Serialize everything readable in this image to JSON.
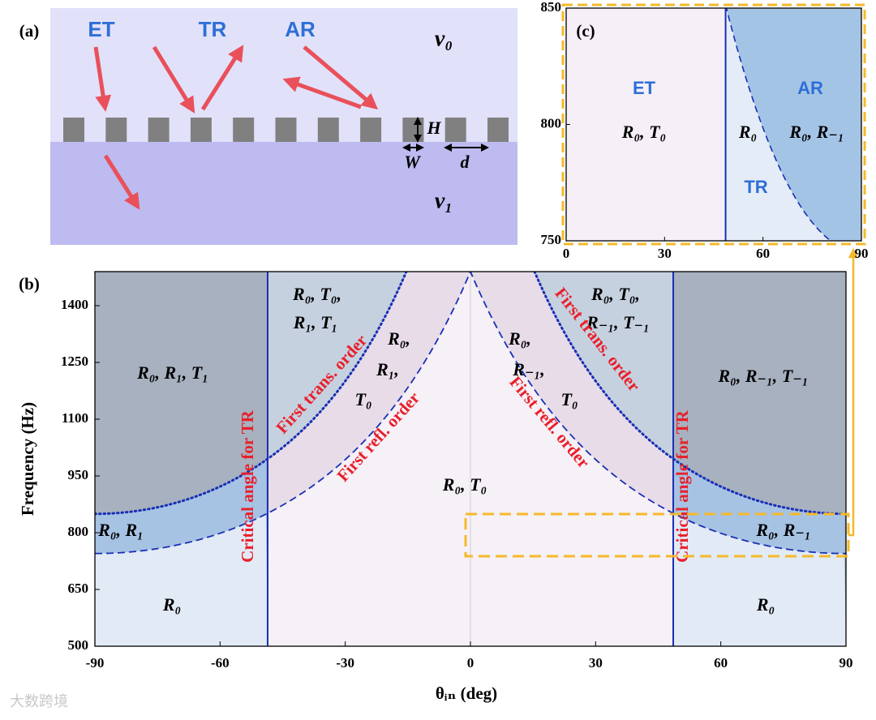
{
  "panel_a": {
    "label": "(a)",
    "waves": [
      "ET",
      "TR",
      "AR"
    ],
    "media": [
      "v₀",
      "v₁"
    ],
    "dimensions": [
      "H",
      "W",
      "d"
    ]
  },
  "panel_b": {
    "label": "(b)",
    "xlabel": "θᵢₙ (deg)",
    "ylabel": "Frequency (Hz)",
    "xlim": [
      -90,
      90
    ],
    "ylim": [
      500,
      1490
    ],
    "xticks": [
      -90,
      -60,
      -30,
      0,
      30,
      60,
      90
    ],
    "yticks": [
      500,
      650,
      800,
      950,
      1100,
      1250,
      1400
    ],
    "regions": [
      "R₀, R₁, T₁",
      "R₀, T₀,",
      "R₁, T₁",
      "R₀,",
      "R₁,",
      "T₀",
      "R₀, T₀",
      "R₀,",
      "R₋₁,",
      "T₀",
      "R₀, T₀,",
      "R₋₁, T₋₁",
      "R₀,  R₋₁, T₋₁",
      "R₀, R₁",
      "R₀, R₋₁",
      "R₀",
      "R₀"
    ],
    "curve_labels": [
      "Critical angle for TR",
      "Critical angle for TR",
      "First trans. order",
      "First trans. order",
      "First refl. order",
      "First refl. order"
    ]
  },
  "panel_c": {
    "label": "(c)",
    "xlim": [
      0,
      90
    ],
    "ylim": [
      750,
      850
    ],
    "xticks": [
      0,
      30,
      60,
      90
    ],
    "yticks": [
      750,
      800,
      850
    ],
    "regions": [
      "ET",
      "R₀, T₀",
      "AR",
      "R₀",
      "R₀, R₋₁",
      "TR"
    ]
  },
  "watermark": "大数跨境"
}
